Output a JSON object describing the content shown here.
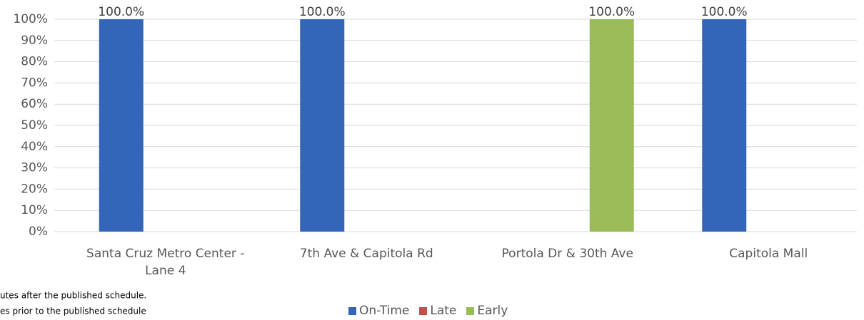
{
  "chart_data": {
    "type": "bar",
    "categories": [
      "Santa Cruz Metro Center - Lane 4",
      "7th Ave & Capitola Rd",
      "Portola Dr & 30th Ave",
      "Capitola Mall"
    ],
    "series": [
      {
        "name": "On-Time",
        "color": "#3465b9",
        "values": [
          100,
          100,
          0,
          100
        ],
        "value_labels": [
          "100.0%",
          "100.0%",
          null,
          "100.0%"
        ]
      },
      {
        "name": "Late",
        "color": "#c0504d",
        "values": [
          0,
          0,
          0,
          0
        ],
        "value_labels": [
          null,
          null,
          null,
          null
        ]
      },
      {
        "name": "Early",
        "color": "#9bbb59",
        "values": [
          0,
          0,
          100,
          0
        ],
        "value_labels": [
          null,
          null,
          "100.0%",
          null
        ]
      }
    ],
    "ylim": [
      0,
      100
    ],
    "yticks": [
      {
        "value": 0,
        "label": "0%"
      },
      {
        "value": 10,
        "label": "10%"
      },
      {
        "value": 20,
        "label": "20%"
      },
      {
        "value": 30,
        "label": "30%"
      },
      {
        "value": 40,
        "label": "40%"
      },
      {
        "value": 50,
        "label": "50%"
      },
      {
        "value": 60,
        "label": "60%"
      },
      {
        "value": 70,
        "label": "70%"
      },
      {
        "value": 80,
        "label": "80%"
      },
      {
        "value": 90,
        "label": "90%"
      },
      {
        "value": 100,
        "label": "100%"
      }
    ],
    "grid": true,
    "annotations": [
      "utes after the published schedule.",
      "es prior to the published schedule"
    ]
  }
}
